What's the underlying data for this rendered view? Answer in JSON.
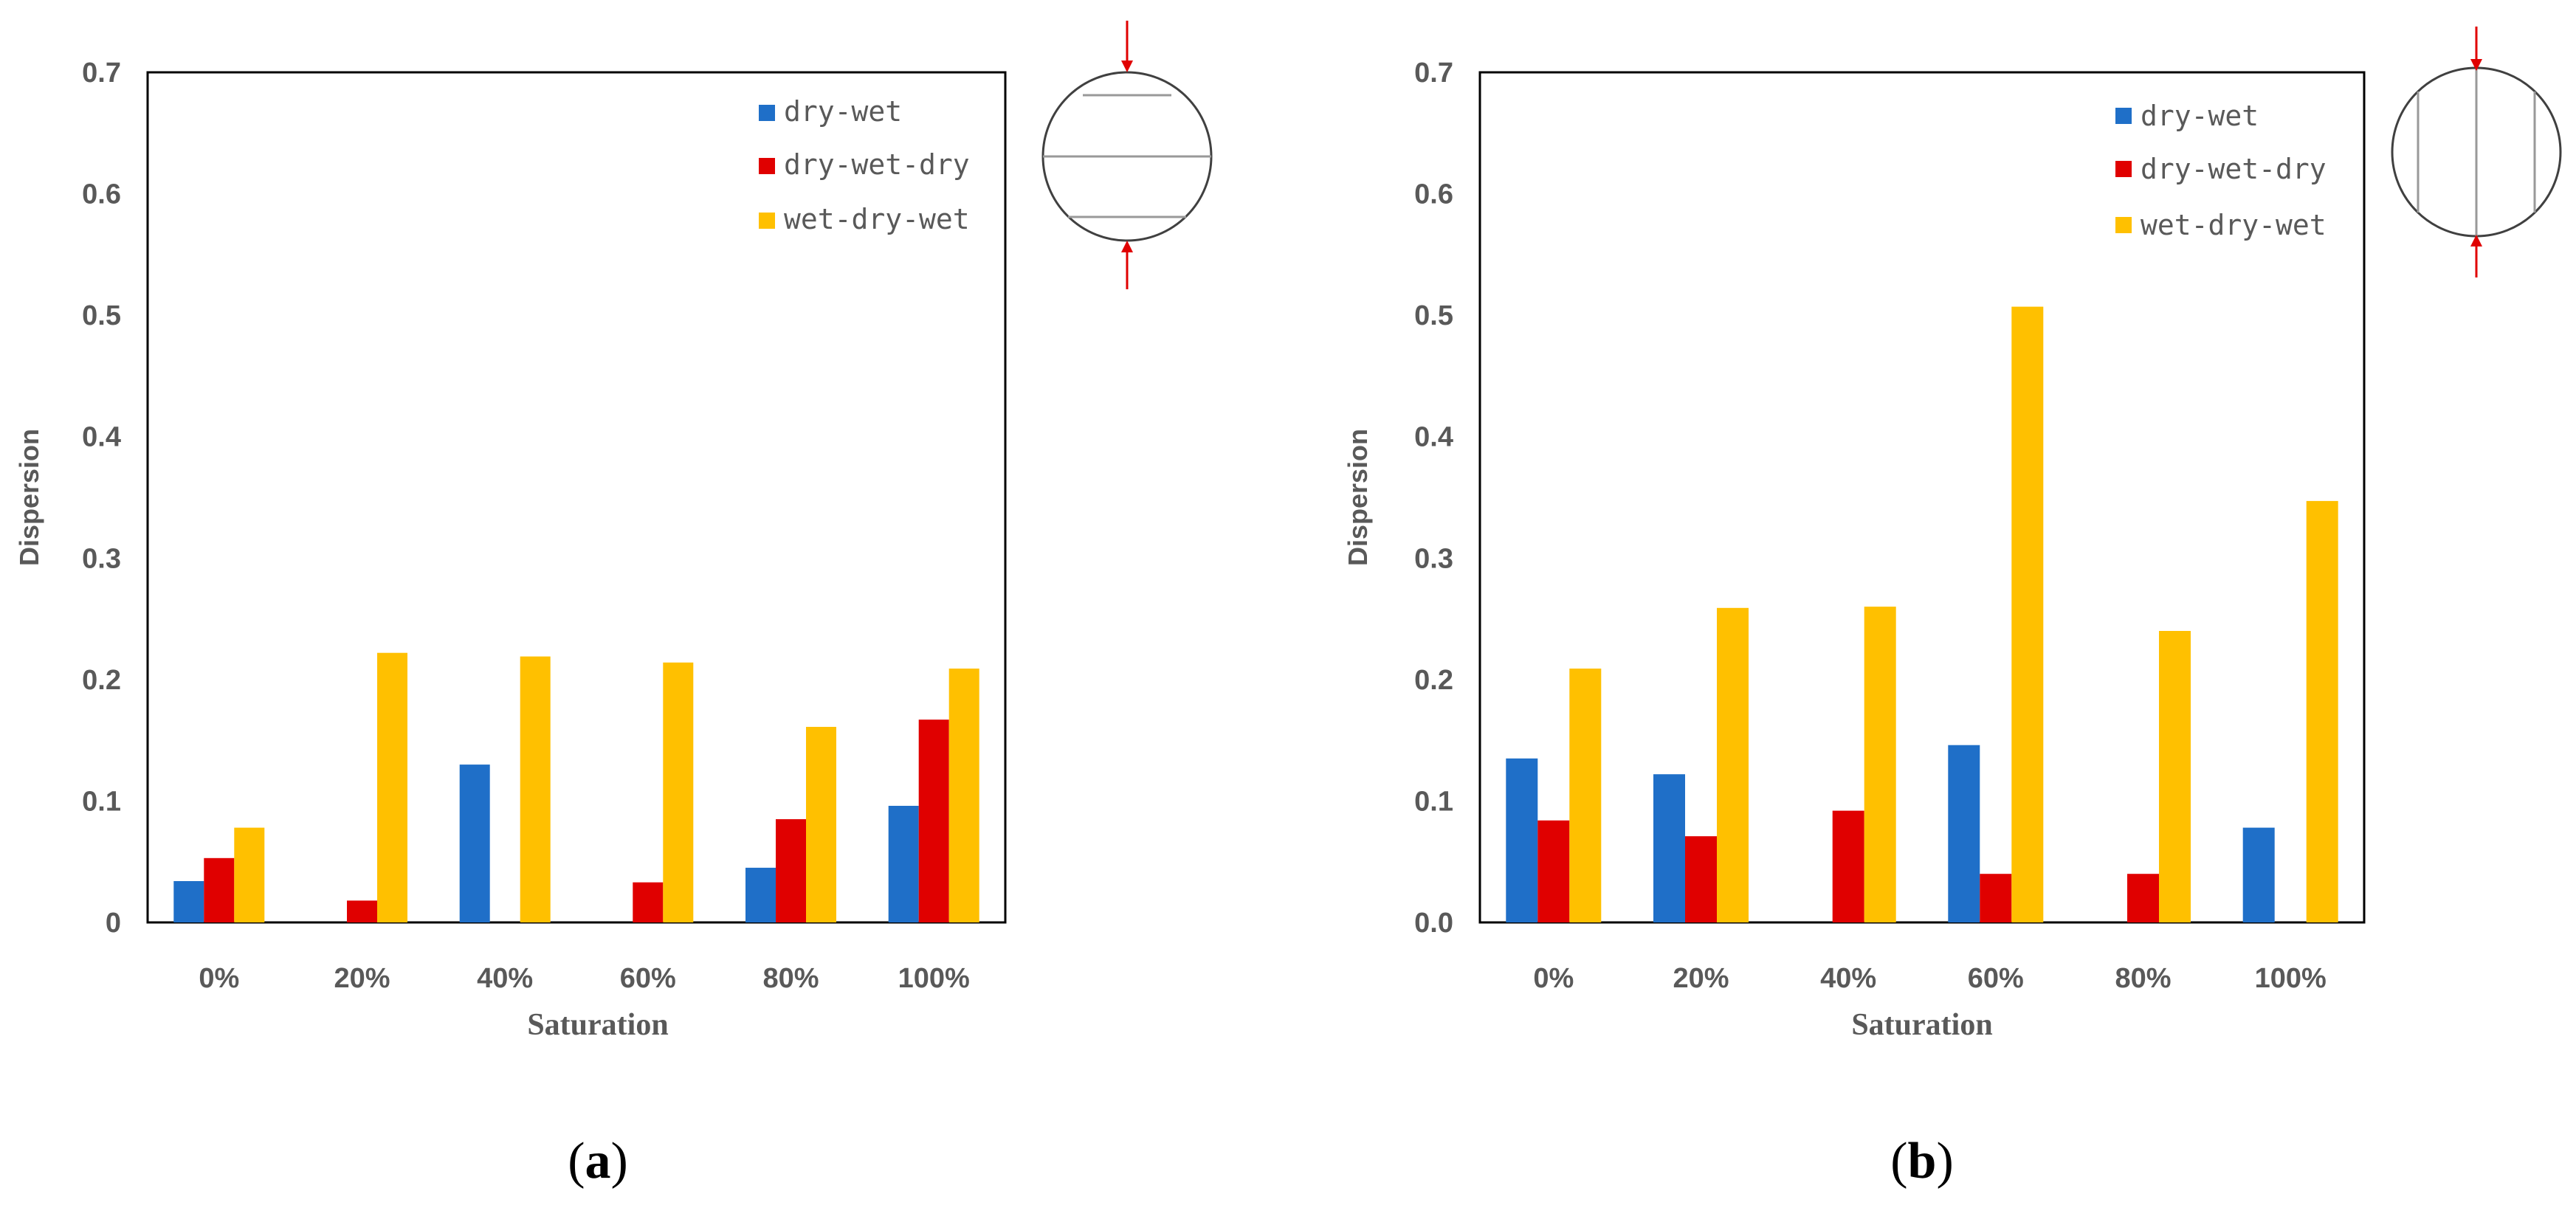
{
  "chart_data": [
    {
      "type": "bar",
      "panel_label": "a",
      "categories": [
        "0%",
        "20%",
        "40%",
        "60%",
        "80%",
        "100%"
      ],
      "series": [
        {
          "name": "dry-wet",
          "color": "#1f6fc8",
          "values": [
            0.034,
            0,
            0.13,
            0,
            0.045,
            0.096
          ]
        },
        {
          "name": "dry-wet-dry",
          "color": "#e00000",
          "values": [
            0.053,
            0.018,
            0,
            0.033,
            0.085,
            0.167
          ]
        },
        {
          "name": "wet-dry-wet",
          "color": "#ffc000",
          "values": [
            0.078,
            0.222,
            0.219,
            0.214,
            0.161,
            0.209
          ]
        }
      ],
      "xlabel": "Saturation",
      "ylabel": "Dispersion",
      "ylim": [
        0,
        0.7
      ],
      "yticks": [
        "0",
        "0.1",
        "0.2",
        "0.3",
        "0.4",
        "0.5",
        "0.6",
        "0.7"
      ],
      "legend_position": "top-right",
      "grid": false,
      "inset": "horizontal-layers"
    },
    {
      "type": "bar",
      "panel_label": "b",
      "categories": [
        "0%",
        "20%",
        "40%",
        "60%",
        "80%",
        "100%"
      ],
      "series": [
        {
          "name": "dry-wet",
          "color": "#1f6fc8",
          "values": [
            0.135,
            0.122,
            0,
            0.146,
            0,
            0.078
          ]
        },
        {
          "name": "dry-wet-dry",
          "color": "#e00000",
          "values": [
            0.084,
            0.071,
            0.092,
            0.04,
            0.04,
            0
          ]
        },
        {
          "name": "wet-dry-wet",
          "color": "#ffc000",
          "values": [
            0.209,
            0.259,
            0.26,
            0.507,
            0.24,
            0.347
          ]
        }
      ],
      "xlabel": "Saturation",
      "ylabel": "Dispersion",
      "ylim": [
        0,
        0.7
      ],
      "yticks": [
        "0.0",
        "0.1",
        "0.2",
        "0.3",
        "0.4",
        "0.5",
        "0.6",
        "0.7"
      ],
      "legend_position": "top-right",
      "grid": false,
      "inset": "vertical-layers"
    }
  ],
  "colors": {
    "axis": "#000000",
    "text": "#595959",
    "inset_line": "#999999",
    "arrow": "#e00000"
  }
}
